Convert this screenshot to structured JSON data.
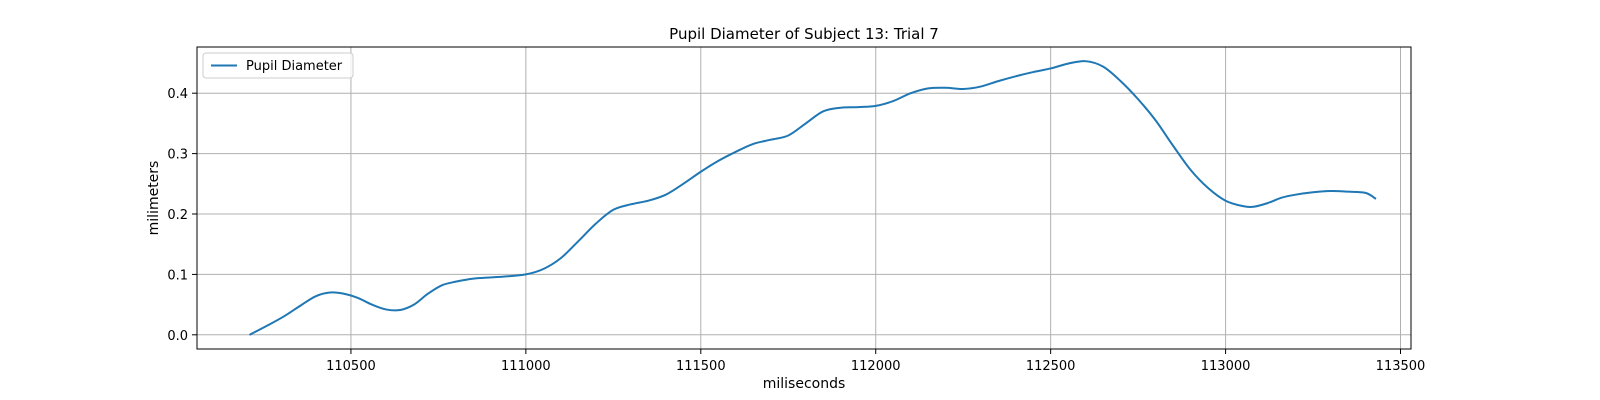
{
  "chart_data": {
    "type": "line",
    "title": "Pupil Diameter of Subject 13: Trial 7",
    "xlabel": "miliseconds",
    "ylabel": "milimeters",
    "xlim": [
      110060,
      113530
    ],
    "ylim": [
      -0.0235,
      0.4765
    ],
    "xticks": [
      110500,
      111000,
      111500,
      112000,
      112500,
      113000,
      113500
    ],
    "yticks": [
      0.0,
      0.1,
      0.2,
      0.3,
      0.4
    ],
    "xtick_labels": [
      "110500",
      "111000",
      "111500",
      "112000",
      "112500",
      "113000",
      "113500"
    ],
    "ytick_labels": [
      "0.0",
      "0.1",
      "0.2",
      "0.3",
      "0.4"
    ],
    "grid": true,
    "legend": {
      "location": "upper-left",
      "entries": [
        "Pupil Diameter"
      ]
    },
    "series": [
      {
        "name": "Pupil Diameter",
        "color": "#1f77b4",
        "x": [
          110210,
          110260,
          110310,
          110360,
          110400,
          110440,
          110480,
          110520,
          110560,
          110600,
          110640,
          110680,
          110720,
          110760,
          110800,
          110850,
          110900,
          110950,
          111000,
          111050,
          111100,
          111150,
          111200,
          111250,
          111300,
          111350,
          111400,
          111450,
          111500,
          111550,
          111600,
          111650,
          111700,
          111750,
          111800,
          111850,
          111900,
          111950,
          112000,
          112050,
          112100,
          112150,
          112200,
          112250,
          112300,
          112350,
          112400,
          112450,
          112500,
          112550,
          112600,
          112650,
          112700,
          112750,
          112800,
          112850,
          112900,
          112950,
          113000,
          113050,
          113080,
          113120,
          113160,
          113200,
          113250,
          113300,
          113350,
          113400,
          113430
        ],
        "values": [
          0.0,
          0.015,
          0.031,
          0.05,
          0.064,
          0.07,
          0.068,
          0.061,
          0.05,
          0.042,
          0.041,
          0.05,
          0.068,
          0.082,
          0.088,
          0.093,
          0.095,
          0.097,
          0.1,
          0.109,
          0.127,
          0.155,
          0.184,
          0.207,
          0.216,
          0.222,
          0.232,
          0.25,
          0.27,
          0.288,
          0.303,
          0.316,
          0.323,
          0.33,
          0.35,
          0.37,
          0.376,
          0.377,
          0.379,
          0.387,
          0.4,
          0.408,
          0.409,
          0.407,
          0.411,
          0.42,
          0.428,
          0.435,
          0.441,
          0.449,
          0.453,
          0.444,
          0.42,
          0.39,
          0.355,
          0.313,
          0.273,
          0.243,
          0.222,
          0.213,
          0.212,
          0.218,
          0.227,
          0.232,
          0.236,
          0.238,
          0.237,
          0.235,
          0.225
        ]
      }
    ]
  }
}
